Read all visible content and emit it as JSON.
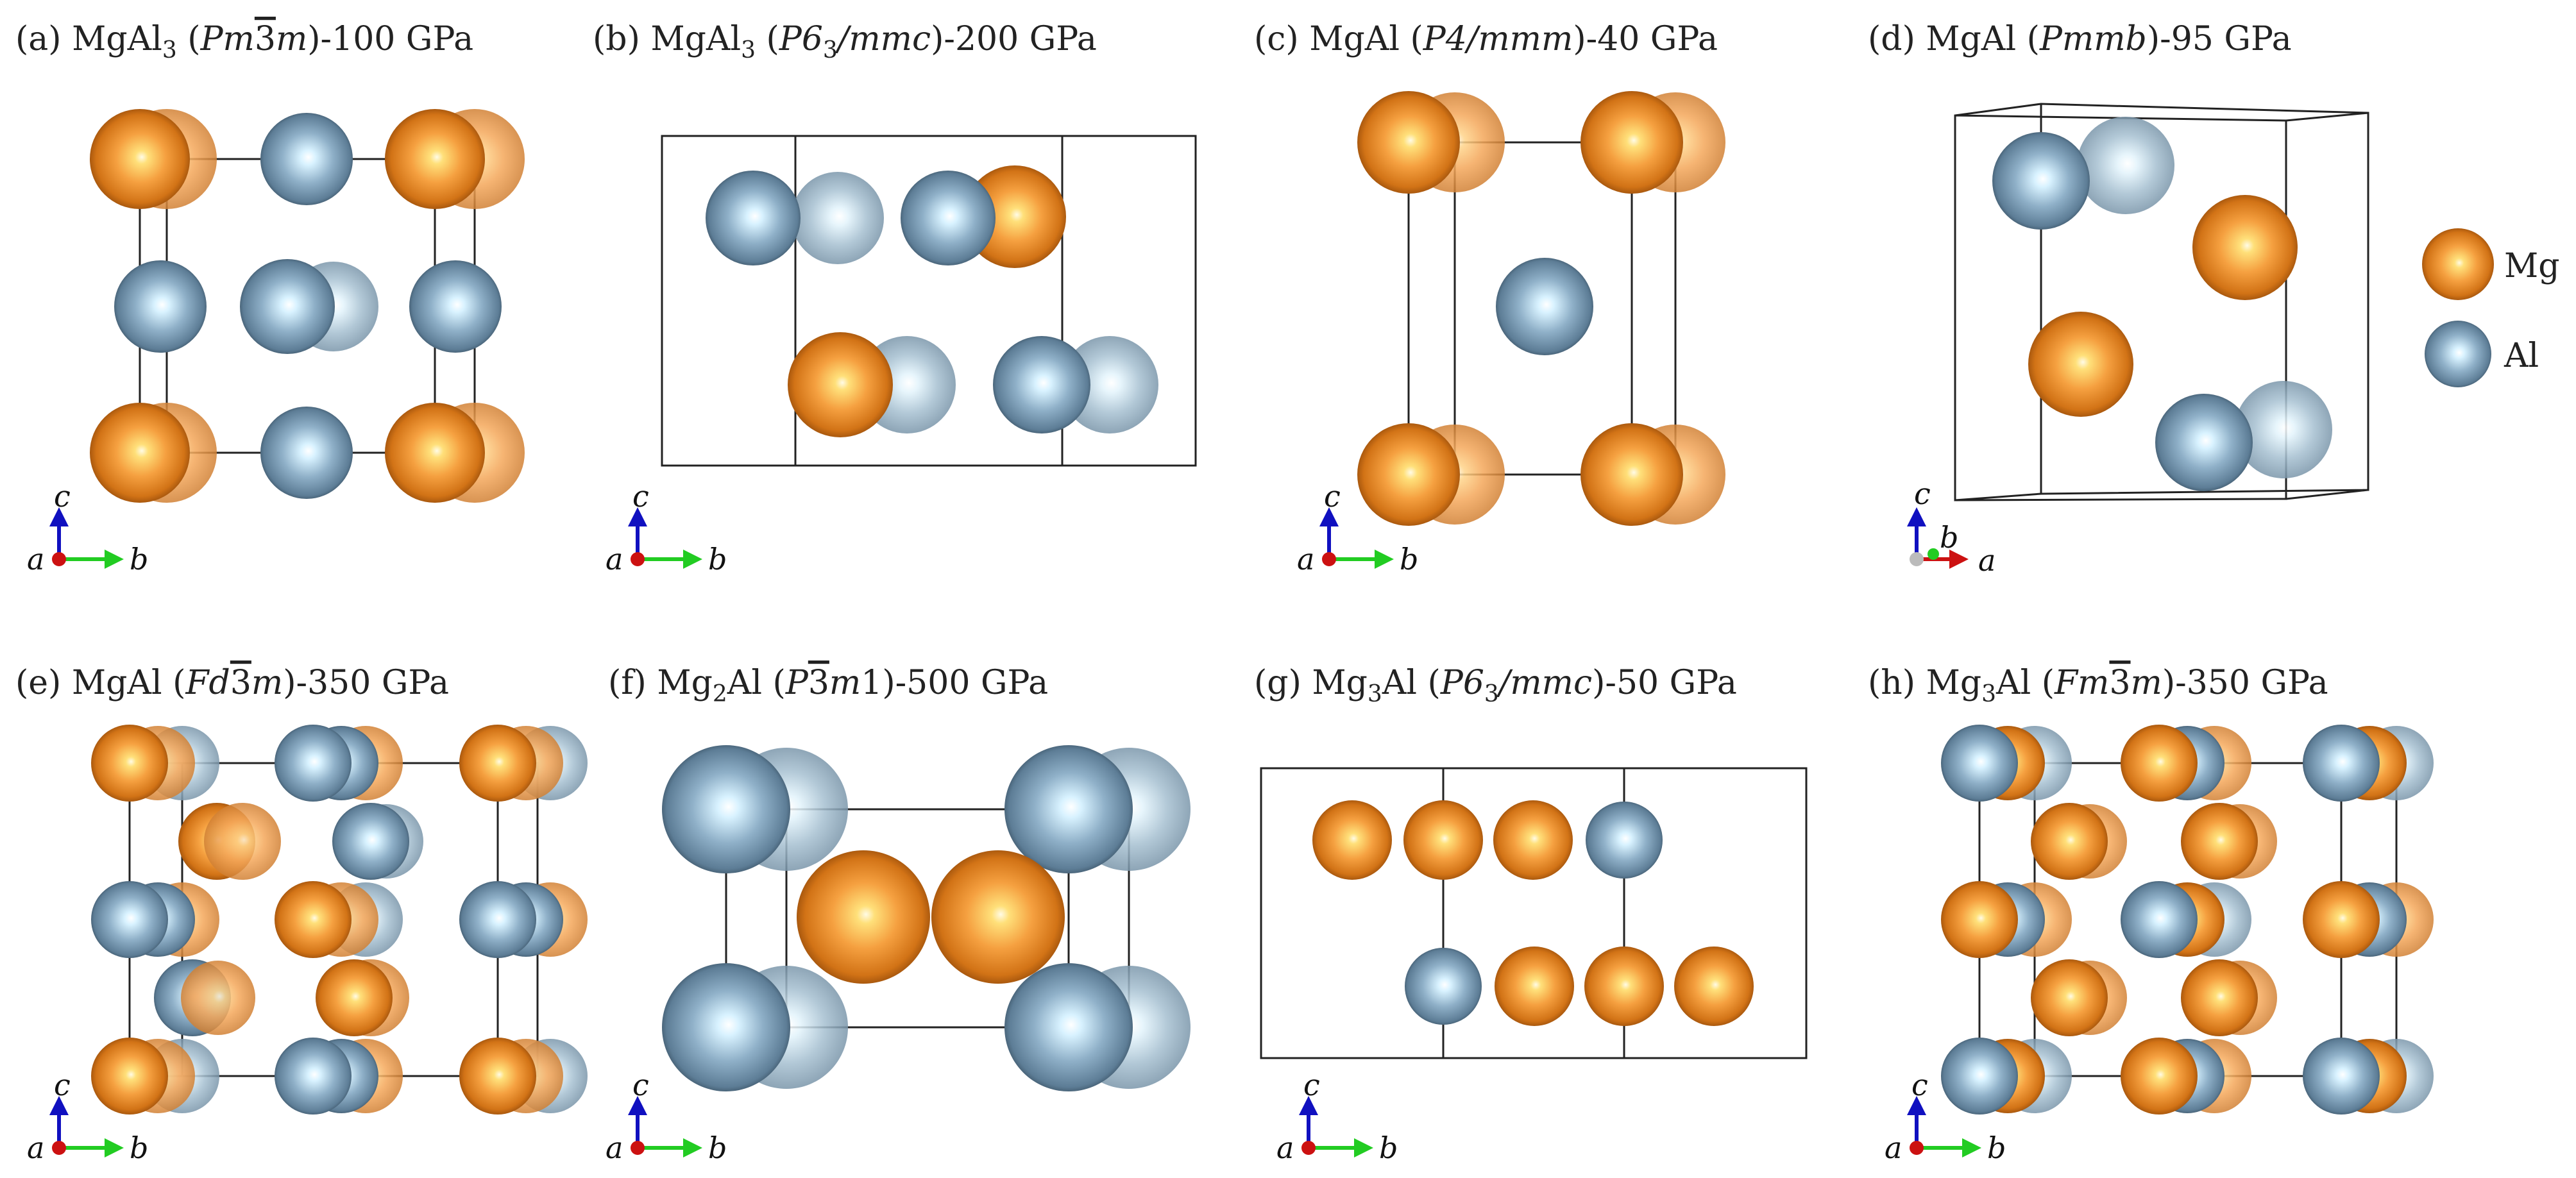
{
  "panels": [
    {
      "id": "a",
      "label": "(a)",
      "formula": "MgAl",
      "sub": "3",
      "group_pre": "Pm",
      "group_bar": "3",
      "group_post": "m",
      "group_suffix": "",
      "pressure": "-100 GPa",
      "axes": {
        "up": "c",
        "left": "a",
        "right": "b"
      }
    },
    {
      "id": "b",
      "label": "(b)",
      "formula": "MgAl",
      "sub": "3",
      "group_pre": "P6",
      "group_sub": "3",
      "group_post": "/mmc",
      "group_suffix": "",
      "pressure": "-200 GPa",
      "axes": {
        "up": "c",
        "left": "a",
        "right": "b"
      }
    },
    {
      "id": "c",
      "label": "(c)",
      "formula": "MgAl",
      "sub": "",
      "group_pre": "P4/mmm",
      "group_post": "",
      "group_suffix": "",
      "pressure": "-40 GPa",
      "axes": {
        "up": "c",
        "left": "a",
        "right": "b"
      }
    },
    {
      "id": "d",
      "label": "(d)",
      "formula": "MgAl",
      "sub": "",
      "group_pre": "Pmmb",
      "group_post": "",
      "group_suffix": "",
      "pressure": "-95 GPa",
      "axes": {
        "up": "c",
        "mid": "b",
        "right": "a"
      }
    },
    {
      "id": "e",
      "label": "(e)",
      "formula": "MgAl",
      "sub": "",
      "group_pre": "Fd",
      "group_bar": "3",
      "group_post": "m",
      "group_suffix": "",
      "pressure": "-350 GPa",
      "axes": {
        "up": "c",
        "left": "a",
        "right": "b"
      }
    },
    {
      "id": "f",
      "label": "(f)",
      "formula": "Mg",
      "sub": "2",
      "formula2": "Al",
      "group_pre": "P",
      "group_bar": "3",
      "group_post": "m",
      "group_suffix": "1",
      "pressure": "-500 GPa",
      "axes": {
        "up": "c",
        "left": "a",
        "right": "b"
      }
    },
    {
      "id": "g",
      "label": "(g)",
      "formula": "Mg",
      "sub": "3",
      "formula2": "Al",
      "group_pre": "P6",
      "group_sub": "3",
      "group_post": "/mmc",
      "group_suffix": "",
      "pressure": "-50 GPa",
      "axes": {
        "up": "c",
        "left": "a",
        "right": "b"
      }
    },
    {
      "id": "h",
      "label": "(h)",
      "formula": "Mg",
      "sub": "3",
      "formula2": "Al",
      "group_pre": "Fm",
      "group_bar": "3",
      "group_post": "m",
      "group_suffix": "",
      "pressure": "-350 GPa",
      "axes": {
        "up": "c",
        "left": "a",
        "right": "b"
      }
    }
  ],
  "legend": [
    {
      "name": "Mg",
      "color": "#e88a2a"
    },
    {
      "name": "Al",
      "color": "#7f9fb7"
    }
  ],
  "colors": {
    "mg": "#e88a2a",
    "al": "#7f9fb7",
    "cell": "#222222",
    "axis_c": "#1010c0",
    "axis_b": "#22cc22",
    "axis_a": "#cc1111"
  }
}
